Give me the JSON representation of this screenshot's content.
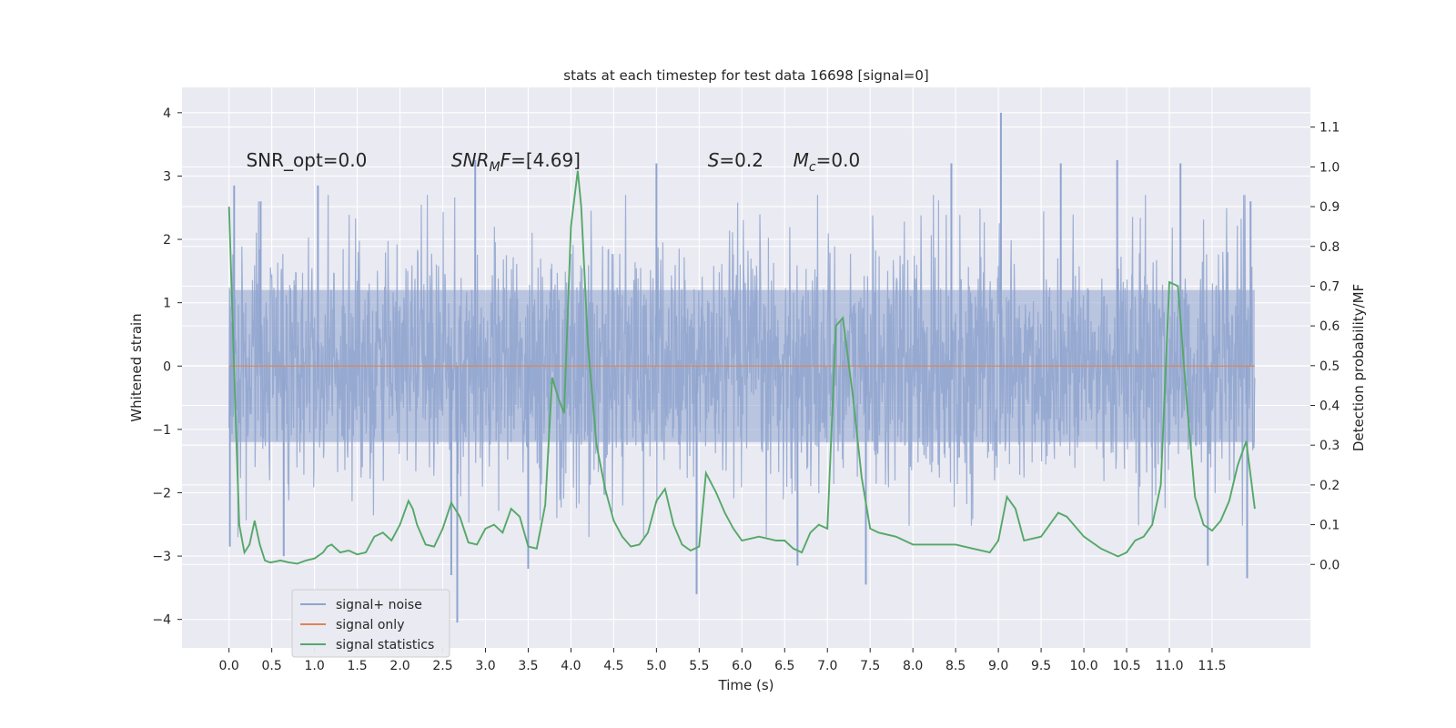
{
  "chart_data": {
    "type": "line",
    "title": "stats at each timestep for test data 16698 [signal=0]",
    "xlabel": "Time (s)",
    "ylabel_left": "Whitened strain",
    "ylabel_right": "Detection probability/MF",
    "xlim": [
      -0.55,
      12.65
    ],
    "ylim_left": [
      -4.45,
      4.4
    ],
    "ylim_right": [
      -0.21,
      1.2
    ],
    "x_ticks": [
      "0.0",
      "0.5",
      "1.0",
      "1.5",
      "2.0",
      "2.5",
      "3.0",
      "3.5",
      "4.0",
      "4.5",
      "5.0",
      "5.5",
      "6.0",
      "6.5",
      "7.0",
      "7.5",
      "8.0",
      "8.5",
      "9.0",
      "9.5",
      "10.0",
      "10.5",
      "11.0",
      "11.5"
    ],
    "y_ticks_left": [
      "−4",
      "−3",
      "−2",
      "−1",
      "0",
      "1",
      "2",
      "3",
      "4"
    ],
    "y_ticks_right": [
      "0.0",
      "0.1",
      "0.2",
      "0.3",
      "0.4",
      "0.5",
      "0.6",
      "0.7",
      "0.8",
      "0.9",
      "1.0",
      "1.1"
    ],
    "grid": true,
    "legend_position": "lower-left",
    "annotations": [
      {
        "id": "snr-opt",
        "text": "SNR_opt=0.0",
        "x": 0.2,
        "y": 3.15
      },
      {
        "id": "snr-mf",
        "text": "SNR",
        "sub": "M",
        "suffix": "F=[4.69]",
        "italic": true,
        "x": 2.6,
        "y": 3.15
      },
      {
        "id": "s-val",
        "text": "S",
        "suffix": "=0.2",
        "italic": true,
        "x": 5.6,
        "y": 3.15
      },
      {
        "id": "mc-val",
        "text": "M",
        "sub": "c",
        "suffix": "=0.0",
        "italic": true,
        "x": 6.6,
        "y": 3.15
      }
    ],
    "series": [
      {
        "name": "signal+ noise",
        "color": "#8fa4cf",
        "x_start": 0.0,
        "x_end": 12.0,
        "band": {
          "p50_low": -1.2,
          "p50_high": 1.2,
          "p90_low": -1.85,
          "p90_high": 1.85
        },
        "peaks_positive": [
          [
            0.06,
            2.85
          ],
          [
            0.37,
            2.6
          ],
          [
            1.04,
            2.85
          ],
          [
            2.88,
            3.25
          ],
          [
            5.0,
            3.2
          ],
          [
            8.45,
            3.2
          ],
          [
            9.03,
            4.0
          ],
          [
            9.73,
            3.2
          ],
          [
            10.39,
            3.25
          ],
          [
            11.13,
            3.2
          ],
          [
            11.95,
            2.6
          ]
        ],
        "peaks_negative": [
          [
            0.01,
            -2.85
          ],
          [
            0.64,
            -3.0
          ],
          [
            2.6,
            -3.3
          ],
          [
            2.67,
            -4.05
          ],
          [
            3.5,
            -3.2
          ],
          [
            5.47,
            -3.6
          ],
          [
            6.65,
            -3.15
          ],
          [
            7.45,
            -3.45
          ],
          [
            11.45,
            -3.15
          ],
          [
            11.91,
            -3.35
          ]
        ]
      },
      {
        "name": "signal only",
        "color": "#dd8452",
        "x": [
          0.0,
          12.0
        ],
        "y": [
          0.0,
          0.0
        ]
      },
      {
        "name": "signal statistics",
        "color": "#55a868",
        "x": [
          0.0,
          0.08,
          0.12,
          0.18,
          0.24,
          0.3,
          0.36,
          0.42,
          0.48,
          0.54,
          0.6,
          0.7,
          0.8,
          0.9,
          1.0,
          1.1,
          1.15,
          1.2,
          1.3,
          1.4,
          1.5,
          1.6,
          1.7,
          1.8,
          1.9,
          2.0,
          2.1,
          2.15,
          2.2,
          2.3,
          2.4,
          2.5,
          2.6,
          2.7,
          2.8,
          2.9,
          3.0,
          3.1,
          3.2,
          3.3,
          3.4,
          3.5,
          3.6,
          3.7,
          3.78,
          3.85,
          3.92,
          4.0,
          4.08,
          4.12,
          4.2,
          4.3,
          4.4,
          4.5,
          4.6,
          4.7,
          4.8,
          4.9,
          5.0,
          5.1,
          5.2,
          5.3,
          5.4,
          5.5,
          5.58,
          5.7,
          5.8,
          5.9,
          6.0,
          6.2,
          6.4,
          6.5,
          6.6,
          6.7,
          6.8,
          6.9,
          7.0,
          7.1,
          7.18,
          7.3,
          7.4,
          7.5,
          7.6,
          7.8,
          8.0,
          8.2,
          8.5,
          8.7,
          8.9,
          9.0,
          9.1,
          9.2,
          9.3,
          9.5,
          9.7,
          9.8,
          10.0,
          10.2,
          10.4,
          10.5,
          10.6,
          10.7,
          10.8,
          10.9,
          11.0,
          11.1,
          11.2,
          11.3,
          11.4,
          11.5,
          11.6,
          11.7,
          11.8,
          11.9,
          12.0
        ],
        "y": [
          0.9,
          0.35,
          0.1,
          0.03,
          0.05,
          0.11,
          0.05,
          0.01,
          0.005,
          0.007,
          0.01,
          0.005,
          0.002,
          0.01,
          0.015,
          0.03,
          0.045,
          0.05,
          0.03,
          0.035,
          0.025,
          0.03,
          0.07,
          0.08,
          0.06,
          0.1,
          0.16,
          0.14,
          0.1,
          0.05,
          0.045,
          0.09,
          0.155,
          0.12,
          0.055,
          0.05,
          0.09,
          0.1,
          0.08,
          0.14,
          0.12,
          0.045,
          0.04,
          0.15,
          0.47,
          0.42,
          0.38,
          0.85,
          0.99,
          0.9,
          0.55,
          0.3,
          0.19,
          0.11,
          0.07,
          0.045,
          0.05,
          0.08,
          0.16,
          0.19,
          0.1,
          0.05,
          0.035,
          0.045,
          0.23,
          0.18,
          0.13,
          0.09,
          0.06,
          0.07,
          0.06,
          0.06,
          0.04,
          0.03,
          0.08,
          0.1,
          0.09,
          0.6,
          0.62,
          0.42,
          0.22,
          0.09,
          0.08,
          0.07,
          0.05,
          0.05,
          0.05,
          0.04,
          0.03,
          0.06,
          0.17,
          0.14,
          0.06,
          0.07,
          0.13,
          0.12,
          0.07,
          0.04,
          0.02,
          0.03,
          0.06,
          0.07,
          0.1,
          0.2,
          0.71,
          0.7,
          0.42,
          0.17,
          0.1,
          0.085,
          0.11,
          0.16,
          0.25,
          0.31,
          0.14
        ]
      }
    ]
  }
}
